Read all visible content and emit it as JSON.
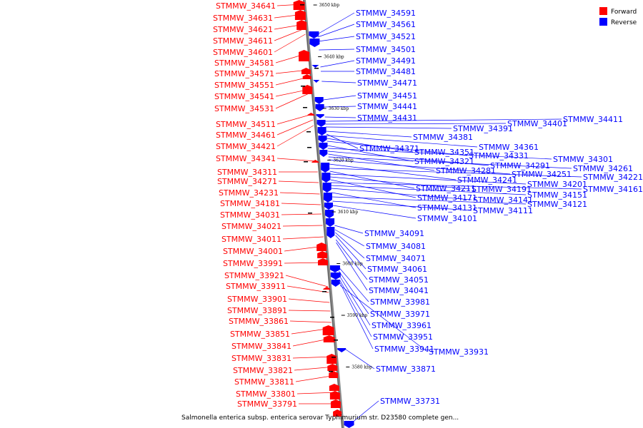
{
  "legend": [
    {
      "label": "Forward",
      "color": "#ff0000"
    },
    {
      "label": "Reverse",
      "color": "#0000ff"
    }
  ],
  "caption": "Salmonella enterica subsp. enterica serovar Typhimurium str. D23580 complete gen...",
  "scale_ticks": [
    {
      "kbp": 3650,
      "label": "3650 kbp"
    },
    {
      "kbp": 3640,
      "label": "3640 kbp"
    },
    {
      "kbp": 3630,
      "label": "3630 kbp"
    },
    {
      "kbp": 3620,
      "label": "3620 kbp"
    },
    {
      "kbp": 3610,
      "label": "3610 kbp"
    },
    {
      "kbp": 3600,
      "label": "3600 kbp"
    },
    {
      "kbp": 3590,
      "label": "3590 kbp"
    },
    {
      "kbp": 3580,
      "label": "3580 kbp"
    }
  ],
  "forward_labels": [
    "STMMW_34641",
    "STMMW_34631",
    "STMMW_34621",
    "STMMW_34611",
    "STMMW_34601",
    "STMMW_34581",
    "STMMW_34571",
    "STMMW_34551",
    "STMMW_34541",
    "STMMW_34531",
    "STMMW_34511",
    "STMMW_34461",
    "STMMW_34421",
    "STMMW_34341",
    "STMMW_34311",
    "STMMW_34271",
    "STMMW_34231",
    "STMMW_34181",
    "STMMW_34031",
    "STMMW_34021",
    "STMMW_34011",
    "STMMW_34001",
    "STMMW_33991",
    "STMMW_33921",
    "STMMW_33911",
    "STMMW_33901",
    "STMMW_33891",
    "STMMW_33861",
    "STMMW_33851",
    "STMMW_33841",
    "STMMW_33831",
    "STMMW_33821",
    "STMMW_33811",
    "STMMW_33801",
    "STMMW_33791"
  ],
  "reverse_labels": [
    "STMMW_34591",
    "STMMW_34561",
    "STMMW_34521",
    "STMMW_34501",
    "STMMW_34491",
    "STMMW_34481",
    "STMMW_34471",
    "STMMW_34451",
    "STMMW_34441",
    "STMMW_34431",
    "STMMW_34411",
    "STMMW_34401",
    "STMMW_34391",
    "STMMW_34381",
    "STMMW_34371",
    "STMMW_34361",
    "STMMW_34351",
    "STMMW_34331",
    "STMMW_34321",
    "STMMW_34301",
    "STMMW_34291",
    "STMMW_34281",
    "STMMW_34261",
    "STMMW_34251",
    "STMMW_34241",
    "STMMW_34221",
    "STMMW_34211",
    "STMMW_34201",
    "STMMW_34191",
    "STMMW_34171",
    "STMMW_34161",
    "STMMW_34151",
    "STMMW_34141",
    "STMMW_34131",
    "STMMW_34121",
    "STMMW_34111",
    "STMMW_34101",
    "STMMW_34091",
    "STMMW_34081",
    "STMMW_34071",
    "STMMW_34061",
    "STMMW_34051",
    "STMMW_34041",
    "STMMW_33981",
    "STMMW_33971",
    "STMMW_33961",
    "STMMW_33951",
    "STMMW_33941",
    "STMMW_33931",
    "STMMW_33871",
    "STMMW_33731"
  ]
}
